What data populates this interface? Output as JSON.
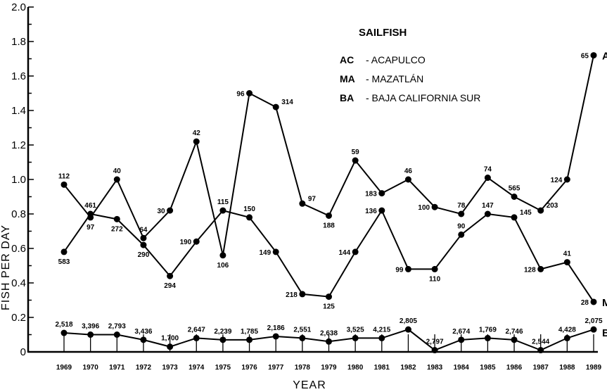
{
  "chart_data": {
    "type": "line",
    "title": "SAILFISH",
    "xlabel": "YEAR",
    "ylabel": "FISH PER DAY",
    "ylim": [
      0,
      2.0
    ],
    "yticks": [
      "0",
      "0.2",
      "0.4",
      "0.6",
      "0.8",
      "1.0",
      "1.2",
      "1.4",
      "1.6",
      "1.8",
      "2.0"
    ],
    "x": [
      "1969",
      "1970",
      "1971",
      "1972",
      "1973",
      "1974",
      "1975",
      "1976",
      "1977",
      "1978",
      "1979",
      "1980",
      "1981",
      "1982",
      "1983",
      "1984",
      "1985",
      "1986",
      "1987",
      "1988",
      "1989"
    ],
    "legend": [
      {
        "code": "AC",
        "name": "- ACAPULCO"
      },
      {
        "code": "MA",
        "name": "- MAZATLÁN"
      },
      {
        "code": "BA",
        "name": "- BAJA CALIFORNIA SUR"
      }
    ],
    "series": [
      {
        "name": "AC",
        "values": [
          0.97,
          0.78,
          1.0,
          0.66,
          0.82,
          1.22,
          0.56,
          1.5,
          1.42,
          0.86,
          0.79,
          1.11,
          0.92,
          1.0,
          0.84,
          0.8,
          1.01,
          0.9,
          0.82,
          1.0,
          1.72
        ],
        "labels": [
          "112",
          "97",
          "40",
          "64",
          "30",
          "42",
          "106",
          "96",
          "314",
          "97",
          "188",
          "59",
          "183",
          "46",
          "100",
          "78",
          "74",
          "565",
          "203",
          "124",
          "65"
        ]
      },
      {
        "name": "MA",
        "values": [
          0.58,
          0.8,
          0.77,
          0.62,
          0.44,
          0.64,
          0.82,
          0.78,
          0.58,
          0.335,
          0.32,
          0.58,
          0.82,
          0.48,
          0.48,
          0.68,
          0.8,
          0.78,
          0.48,
          0.52,
          0.29
        ],
        "labels": [
          "583",
          "461",
          "272",
          "290",
          "294",
          "190",
          "115",
          "150",
          "149",
          "218",
          "125",
          "144",
          "136",
          "99",
          "110",
          "90",
          "147",
          "145",
          "128",
          "41",
          "28"
        ]
      },
      {
        "name": "BA",
        "values": [
          0.11,
          0.1,
          0.1,
          0.07,
          0.03,
          0.08,
          0.07,
          0.07,
          0.09,
          0.08,
          0.06,
          0.08,
          0.08,
          0.13,
          0.01,
          0.07,
          0.08,
          0.07,
          0.01,
          0.08,
          0.13
        ],
        "labels": [
          "2,518",
          "3,396",
          "2,793",
          "3,436",
          "1,700",
          "2,647",
          "2,239",
          "1,785",
          "2,186",
          "2,551",
          "2,638",
          "3,525",
          "4,215",
          "2,805",
          "2,797",
          "2,674",
          "1,769",
          "2,746",
          "2,544",
          "4,428",
          "2,075"
        ]
      }
    ]
  }
}
